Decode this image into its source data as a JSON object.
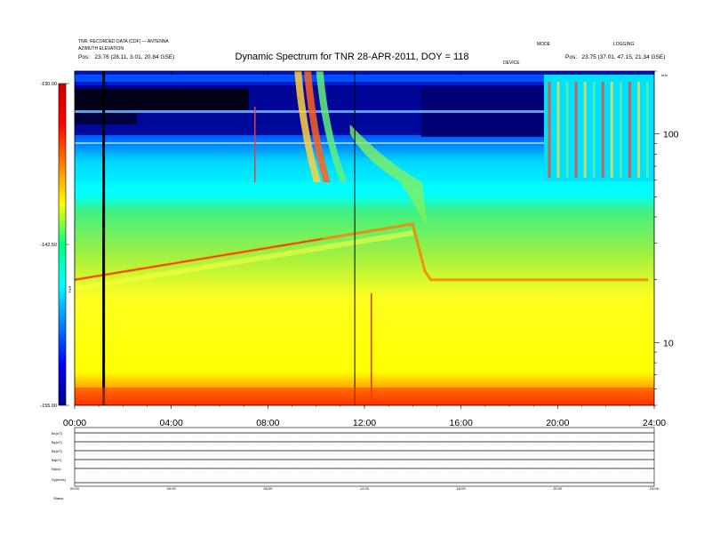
{
  "chart_data": {
    "type": "heatmap",
    "title": "Dynamic Spectrum for TNR 28-APR-2011, DOY = 118",
    "xlabel": "",
    "ylabel": "",
    "x_ticks": [
      "00:00",
      "04:00",
      "08:00",
      "12:00",
      "16:00",
      "20:00",
      "24:00"
    ],
    "xlim_hours": [
      0,
      24
    ],
    "y_scale": "log",
    "y_ticks": [
      "10",
      "100"
    ],
    "ylim_khz": [
      5,
      200
    ],
    "colorbar": {
      "ticks": [
        "-130.00",
        "-142.50",
        "-155.00"
      ],
      "range": [
        -155,
        -130
      ],
      "label": "TNR",
      "colors": [
        "#00008b",
        "#0000ff",
        "#0080ff",
        "#00ffff",
        "#00ff80",
        "#ffff00",
        "#ff8000",
        "#ff0000",
        "#cc0000"
      ]
    },
    "features": [
      {
        "name": "data gap (black vertical)",
        "t_hours": 1.2
      },
      {
        "name": "vertical line",
        "t_hours": 11.6
      },
      {
        "name": "narrowband emission start",
        "t_hours": 0.0,
        "khz": 20
      },
      {
        "name": "narrowband emission peak",
        "t_hours": 14.0,
        "khz": 37
      },
      {
        "name": "emission after shift",
        "t_hours": 24.0,
        "khz": 20
      }
    ]
  },
  "header": {
    "top_left_1": "TNR: RECORDED DATA (CDF) — ANTENNA",
    "top_left_2": "AZIMUTH ELEVATION",
    "top_left_3": "Pos:   23.76 (28.11, 3.01, 20.84 GSE)",
    "top_right_1": "MODE",
    "top_right_2": "LOGGING",
    "top_right_3": "Pos:   23.75 (37.01, 47.15, 21.34 GSE)",
    "center_small": "DEVICE"
  },
  "right_axis_top": "kHz",
  "bottom_panel": {
    "labels": [
      "Bx(nT)",
      "By(nT)",
      "Bz(nT)",
      "Bt(nT)",
      "Ni(cc)",
      "Vp(km/s)",
      "Status"
    ],
    "x_ticks": [
      "00:00",
      "04:00",
      "08:00",
      "12:00",
      "16:00",
      "20:00",
      "24:00"
    ]
  }
}
